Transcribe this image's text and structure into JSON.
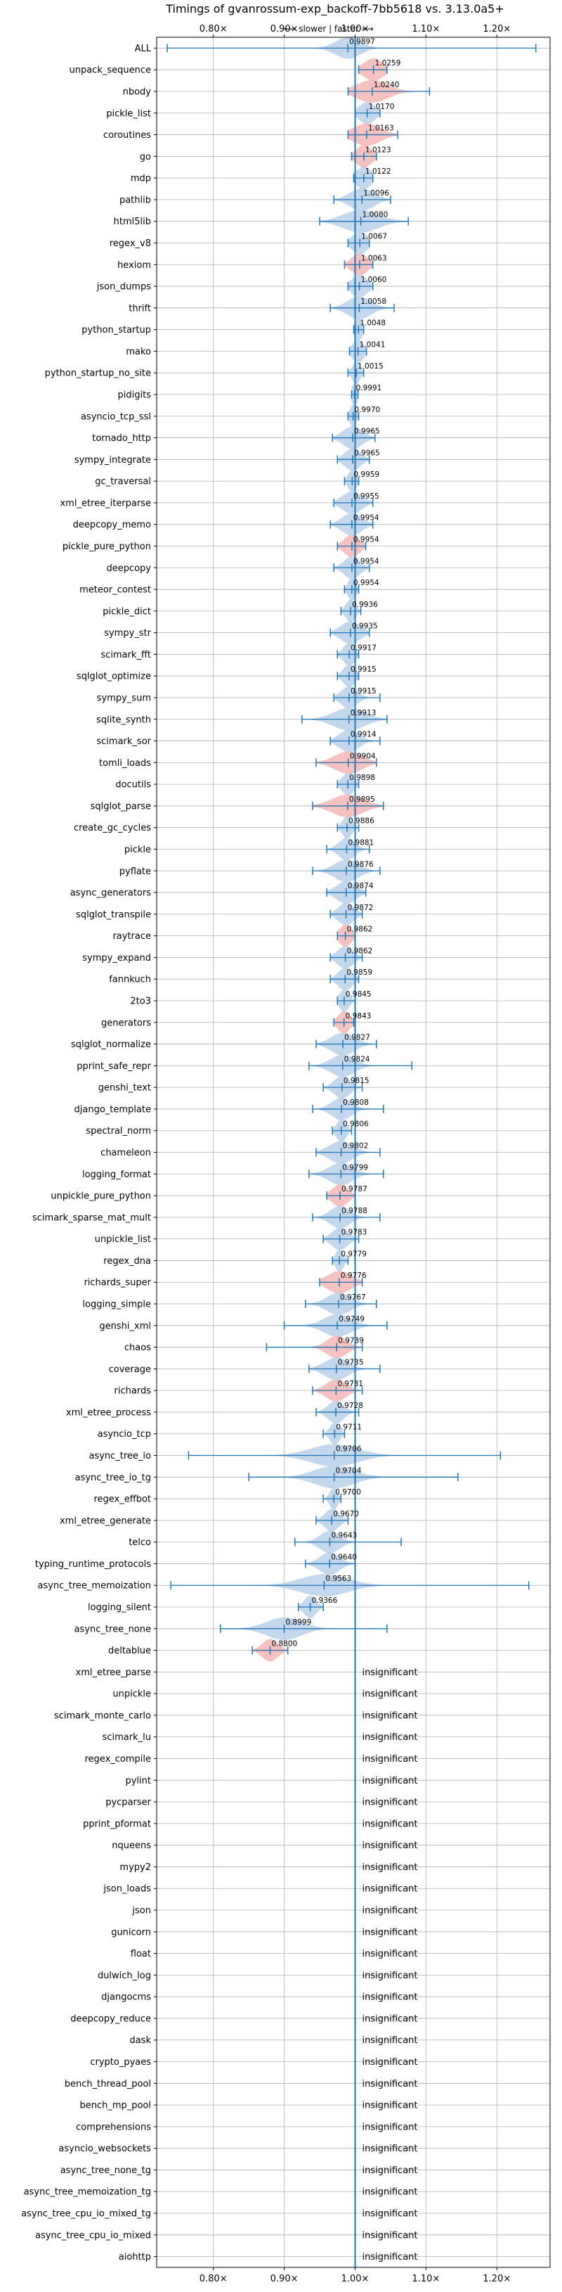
{
  "chart_data": {
    "type": "violin",
    "title": "Timings of gvanrossum-exp_backoff-7bb5618 vs. 3.13.0a5+",
    "direction_label": "⟵ slower | faster ⟶",
    "xlim": [
      0.72,
      1.275
    ],
    "x_ticks": [
      0.8,
      0.9,
      1.0,
      1.1,
      1.2
    ],
    "x_tick_labels": [
      "0.80×",
      "0.90×",
      "1.00×",
      "1.10×",
      "1.20×"
    ],
    "grid": true,
    "colors": {
      "faster": "#b8d0ea",
      "slower": "#f4b6b6",
      "line": "#1f77b4"
    },
    "benchmarks": [
      {
        "name": "ALL",
        "value": 0.9897,
        "label": "0.9897",
        "lo": 0.735,
        "hi": 1.255,
        "width": 0.03,
        "color": "faster"
      },
      {
        "name": "unpack_sequence",
        "value": 1.0259,
        "label": "1.0259",
        "lo": 1.005,
        "hi": 1.045,
        "width": 0.025,
        "color": "slower"
      },
      {
        "name": "nbody",
        "value": 1.024,
        "label": "1.0240",
        "lo": 0.99,
        "hi": 1.105,
        "width": 0.04,
        "color": "slower"
      },
      {
        "name": "pickle_list",
        "value": 1.017,
        "label": "1.0170",
        "lo": 1.0,
        "hi": 1.035,
        "width": 0.02,
        "color": "faster"
      },
      {
        "name": "coroutines",
        "value": 1.0163,
        "label": "1.0163",
        "lo": 0.99,
        "hi": 1.06,
        "width": 0.035,
        "color": "slower"
      },
      {
        "name": "go",
        "value": 1.0123,
        "label": "1.0123",
        "lo": 0.995,
        "hi": 1.03,
        "width": 0.02,
        "color": "slower"
      },
      {
        "name": "mdp",
        "value": 1.0122,
        "label": "1.0122",
        "lo": 0.998,
        "hi": 1.025,
        "width": 0.02,
        "color": "faster"
      },
      {
        "name": "pathlib",
        "value": 1.0096,
        "label": "1.0096",
        "lo": 0.97,
        "hi": 1.05,
        "width": 0.03,
        "color": "faster"
      },
      {
        "name": "html5lib",
        "value": 1.008,
        "label": "1.0080",
        "lo": 0.95,
        "hi": 1.075,
        "width": 0.045,
        "color": "faster"
      },
      {
        "name": "regex_v8",
        "value": 1.0067,
        "label": "1.0067",
        "lo": 0.99,
        "hi": 1.02,
        "width": 0.02,
        "color": "faster"
      },
      {
        "name": "hexiom",
        "value": 1.0063,
        "label": "1.0063",
        "lo": 0.985,
        "hi": 1.025,
        "width": 0.02,
        "color": "slower"
      },
      {
        "name": "json_dumps",
        "value": 1.006,
        "label": "1.0060",
        "lo": 0.99,
        "hi": 1.025,
        "width": 0.02,
        "color": "faster"
      },
      {
        "name": "thrift",
        "value": 1.0058,
        "label": "1.0058",
        "lo": 0.965,
        "hi": 1.055,
        "width": 0.03,
        "color": "faster"
      },
      {
        "name": "python_startup",
        "value": 1.0048,
        "label": "1.0048",
        "lo": 0.998,
        "hi": 1.012,
        "width": 0.01,
        "color": "faster"
      },
      {
        "name": "mako",
        "value": 1.0041,
        "label": "1.0041",
        "lo": 0.992,
        "hi": 1.016,
        "width": 0.015,
        "color": "faster"
      },
      {
        "name": "python_startup_no_site",
        "value": 1.0015,
        "label": "1.0015",
        "lo": 0.99,
        "hi": 1.012,
        "width": 0.01,
        "color": "faster"
      },
      {
        "name": "pidigits",
        "value": 0.9991,
        "label": "0.9991",
        "lo": 0.995,
        "hi": 1.004,
        "width": 0.008,
        "color": "faster"
      },
      {
        "name": "asyncio_tcp_ssl",
        "value": 0.997,
        "label": "0.9970",
        "lo": 0.99,
        "hi": 1.005,
        "width": 0.008,
        "color": "faster"
      },
      {
        "name": "tornado_http",
        "value": 0.9965,
        "label": "0.9965",
        "lo": 0.968,
        "hi": 1.028,
        "width": 0.025,
        "color": "faster"
      },
      {
        "name": "sympy_integrate",
        "value": 0.9965,
        "label": "0.9965",
        "lo": 0.975,
        "hi": 1.02,
        "width": 0.02,
        "color": "faster"
      },
      {
        "name": "gc_traversal",
        "value": 0.9959,
        "label": "0.9959",
        "lo": 0.985,
        "hi": 1.005,
        "width": 0.01,
        "color": "faster"
      },
      {
        "name": "xml_etree_iterparse",
        "value": 0.9955,
        "label": "0.9955",
        "lo": 0.97,
        "hi": 1.025,
        "width": 0.025,
        "color": "faster"
      },
      {
        "name": "deepcopy_memo",
        "value": 0.9954,
        "label": "0.9954",
        "lo": 0.965,
        "hi": 1.025,
        "width": 0.025,
        "color": "faster"
      },
      {
        "name": "pickle_pure_python",
        "value": 0.9954,
        "label": "0.9954",
        "lo": 0.975,
        "hi": 1.015,
        "width": 0.02,
        "color": "slower"
      },
      {
        "name": "deepcopy",
        "value": 0.9954,
        "label": "0.9954",
        "lo": 0.97,
        "hi": 1.02,
        "width": 0.02,
        "color": "faster"
      },
      {
        "name": "meteor_contest",
        "value": 0.9954,
        "label": "0.9954",
        "lo": 0.985,
        "hi": 1.005,
        "width": 0.01,
        "color": "faster"
      },
      {
        "name": "pickle_dict",
        "value": 0.9936,
        "label": "0.9936",
        "lo": 0.98,
        "hi": 1.008,
        "width": 0.012,
        "color": "faster"
      },
      {
        "name": "sympy_str",
        "value": 0.9935,
        "label": "0.9935",
        "lo": 0.965,
        "hi": 1.02,
        "width": 0.025,
        "color": "faster"
      },
      {
        "name": "scimark_fft",
        "value": 0.9917,
        "label": "0.9917",
        "lo": 0.975,
        "hi": 1.005,
        "width": 0.015,
        "color": "faster"
      },
      {
        "name": "sqlglot_optimize",
        "value": 0.9915,
        "label": "0.9915",
        "lo": 0.975,
        "hi": 1.005,
        "width": 0.015,
        "color": "faster"
      },
      {
        "name": "sympy_sum",
        "value": 0.9915,
        "label": "0.9915",
        "lo": 0.97,
        "hi": 1.035,
        "width": 0.02,
        "color": "faster"
      },
      {
        "name": "sqlite_synth",
        "value": 0.9913,
        "label": "0.9913",
        "lo": 0.925,
        "hi": 1.045,
        "width": 0.04,
        "color": "faster"
      },
      {
        "name": "scimark_sor",
        "value": 0.9914,
        "label": "0.9914",
        "lo": 0.965,
        "hi": 1.035,
        "width": 0.025,
        "color": "faster"
      },
      {
        "name": "tomli_loads",
        "value": 0.9904,
        "label": "0.9904",
        "lo": 0.945,
        "hi": 1.03,
        "width": 0.035,
        "color": "slower"
      },
      {
        "name": "docutils",
        "value": 0.9898,
        "label": "0.9898",
        "lo": 0.975,
        "hi": 1.005,
        "width": 0.015,
        "color": "faster"
      },
      {
        "name": "sqlglot_parse",
        "value": 0.9895,
        "label": "0.9895",
        "lo": 0.94,
        "hi": 1.04,
        "width": 0.04,
        "color": "slower"
      },
      {
        "name": "create_gc_cycles",
        "value": 0.9886,
        "label": "0.9886",
        "lo": 0.975,
        "hi": 1.005,
        "width": 0.012,
        "color": "faster"
      },
      {
        "name": "pickle",
        "value": 0.9881,
        "label": "0.9881",
        "lo": 0.96,
        "hi": 1.02,
        "width": 0.02,
        "color": "faster"
      },
      {
        "name": "pyflate",
        "value": 0.9876,
        "label": "0.9876",
        "lo": 0.94,
        "hi": 1.035,
        "width": 0.03,
        "color": "faster"
      },
      {
        "name": "async_generators",
        "value": 0.9874,
        "label": "0.9874",
        "lo": 0.96,
        "hi": 1.015,
        "width": 0.025,
        "color": "faster"
      },
      {
        "name": "sqlglot_transpile",
        "value": 0.9872,
        "label": "0.9872",
        "lo": 0.965,
        "hi": 1.01,
        "width": 0.02,
        "color": "faster"
      },
      {
        "name": "raytrace",
        "value": 0.9862,
        "label": "0.9862",
        "lo": 0.975,
        "hi": 1.0,
        "width": 0.015,
        "color": "slower"
      },
      {
        "name": "sympy_expand",
        "value": 0.9862,
        "label": "0.9862",
        "lo": 0.965,
        "hi": 1.01,
        "width": 0.02,
        "color": "faster"
      },
      {
        "name": "fannkuch",
        "value": 0.9859,
        "label": "0.9859",
        "lo": 0.965,
        "hi": 1.005,
        "width": 0.018,
        "color": "faster"
      },
      {
        "name": "2to3",
        "value": 0.9845,
        "label": "0.9845",
        "lo": 0.975,
        "hi": 1.0,
        "width": 0.012,
        "color": "faster"
      },
      {
        "name": "generators",
        "value": 0.9843,
        "label": "0.9843",
        "lo": 0.97,
        "hi": 0.998,
        "width": 0.015,
        "color": "slower"
      },
      {
        "name": "sqlglot_normalize",
        "value": 0.9827,
        "label": "0.9827",
        "lo": 0.945,
        "hi": 1.03,
        "width": 0.03,
        "color": "faster"
      },
      {
        "name": "pprint_safe_repr",
        "value": 0.9824,
        "label": "0.9824",
        "lo": 0.935,
        "hi": 1.08,
        "width": 0.03,
        "color": "faster"
      },
      {
        "name": "genshi_text",
        "value": 0.9815,
        "label": "0.9815",
        "lo": 0.955,
        "hi": 1.01,
        "width": 0.02,
        "color": "faster"
      },
      {
        "name": "django_template",
        "value": 0.9808,
        "label": "0.9808",
        "lo": 0.94,
        "hi": 1.04,
        "width": 0.025,
        "color": "faster"
      },
      {
        "name": "spectral_norm",
        "value": 0.9806,
        "label": "0.9806",
        "lo": 0.968,
        "hi": 0.995,
        "width": 0.012,
        "color": "faster"
      },
      {
        "name": "chameleon",
        "value": 0.9802,
        "label": "0.9802",
        "lo": 0.945,
        "hi": 1.035,
        "width": 0.03,
        "color": "faster"
      },
      {
        "name": "logging_format",
        "value": 0.9799,
        "label": "0.9799",
        "lo": 0.935,
        "hi": 1.04,
        "width": 0.03,
        "color": "faster"
      },
      {
        "name": "unpickle_pure_python",
        "value": 0.9787,
        "label": "0.9787",
        "lo": 0.96,
        "hi": 1.0,
        "width": 0.02,
        "color": "slower"
      },
      {
        "name": "scimark_sparse_mat_mult",
        "value": 0.9788,
        "label": "0.9788",
        "lo": 0.94,
        "hi": 1.035,
        "width": 0.025,
        "color": "faster"
      },
      {
        "name": "unpickle_list",
        "value": 0.9783,
        "label": "0.9783",
        "lo": 0.955,
        "hi": 1.005,
        "width": 0.02,
        "color": "faster"
      },
      {
        "name": "regex_dna",
        "value": 0.9779,
        "label": "0.9779",
        "lo": 0.968,
        "hi": 0.99,
        "width": 0.01,
        "color": "faster"
      },
      {
        "name": "richards_super",
        "value": 0.9776,
        "label": "0.9776",
        "lo": 0.95,
        "hi": 1.01,
        "width": 0.03,
        "color": "slower"
      },
      {
        "name": "logging_simple",
        "value": 0.9767,
        "label": "0.9767",
        "lo": 0.93,
        "hi": 1.03,
        "width": 0.03,
        "color": "faster"
      },
      {
        "name": "genshi_xml",
        "value": 0.9749,
        "label": "0.9749",
        "lo": 0.9,
        "hi": 1.045,
        "width": 0.035,
        "color": "faster"
      },
      {
        "name": "chaos",
        "value": 0.9739,
        "label": "0.9739",
        "lo": 0.875,
        "hi": 1.01,
        "width": 0.025,
        "color": "slower"
      },
      {
        "name": "coverage",
        "value": 0.9735,
        "label": "0.9735",
        "lo": 0.935,
        "hi": 1.035,
        "width": 0.03,
        "color": "faster"
      },
      {
        "name": "richards",
        "value": 0.9731,
        "label": "0.9731",
        "lo": 0.94,
        "hi": 1.01,
        "width": 0.025,
        "color": "slower"
      },
      {
        "name": "xml_etree_process",
        "value": 0.9728,
        "label": "0.9728",
        "lo": 0.945,
        "hi": 1.005,
        "width": 0.02,
        "color": "faster"
      },
      {
        "name": "asyncio_tcp",
        "value": 0.9711,
        "label": "0.9711",
        "lo": 0.955,
        "hi": 0.985,
        "width": 0.012,
        "color": "faster"
      },
      {
        "name": "async_tree_io",
        "value": 0.9706,
        "label": "0.9706",
        "lo": 0.765,
        "hi": 1.205,
        "width": 0.06,
        "color": "faster"
      },
      {
        "name": "async_tree_io_tg",
        "value": 0.9704,
        "label": "0.9704",
        "lo": 0.85,
        "hi": 1.145,
        "width": 0.05,
        "color": "faster"
      },
      {
        "name": "regex_effbot",
        "value": 0.97,
        "label": "0.9700",
        "lo": 0.955,
        "hi": 0.98,
        "width": 0.01,
        "color": "faster"
      },
      {
        "name": "xml_etree_generate",
        "value": 0.967,
        "label": "0.9670",
        "lo": 0.945,
        "hi": 0.99,
        "width": 0.018,
        "color": "faster"
      },
      {
        "name": "telco",
        "value": 0.9643,
        "label": "0.9643",
        "lo": 0.915,
        "hi": 1.065,
        "width": 0.025,
        "color": "faster"
      },
      {
        "name": "typing_runtime_protocols",
        "value": 0.964,
        "label": "0.9640",
        "lo": 0.93,
        "hi": 1.0,
        "width": 0.025,
        "color": "faster"
      },
      {
        "name": "async_tree_memoization",
        "value": 0.9563,
        "label": "0.9563",
        "lo": 0.74,
        "hi": 1.245,
        "width": 0.06,
        "color": "faster"
      },
      {
        "name": "logging_silent",
        "value": 0.9366,
        "label": "0.9366",
        "lo": 0.92,
        "hi": 0.955,
        "width": 0.015,
        "color": "faster"
      },
      {
        "name": "async_tree_none",
        "value": 0.8999,
        "label": "0.8999",
        "lo": 0.81,
        "hi": 1.045,
        "width": 0.045,
        "color": "faster"
      },
      {
        "name": "deltablue",
        "value": 0.88,
        "label": "0.8800",
        "lo": 0.855,
        "hi": 0.905,
        "width": 0.02,
        "color": "slower"
      },
      {
        "name": "xml_etree_parse",
        "value": null,
        "label": "insignificant"
      },
      {
        "name": "unpickle",
        "value": null,
        "label": "insignificant"
      },
      {
        "name": "scimark_monte_carlo",
        "value": null,
        "label": "insignificant"
      },
      {
        "name": "scimark_lu",
        "value": null,
        "label": "insignificant"
      },
      {
        "name": "regex_compile",
        "value": null,
        "label": "insignificant"
      },
      {
        "name": "pylint",
        "value": null,
        "label": "insignificant"
      },
      {
        "name": "pycparser",
        "value": null,
        "label": "insignificant"
      },
      {
        "name": "pprint_pformat",
        "value": null,
        "label": "insignificant"
      },
      {
        "name": "nqueens",
        "value": null,
        "label": "insignificant"
      },
      {
        "name": "mypy2",
        "value": null,
        "label": "insignificant"
      },
      {
        "name": "json_loads",
        "value": null,
        "label": "insignificant"
      },
      {
        "name": "json",
        "value": null,
        "label": "insignificant"
      },
      {
        "name": "gunicorn",
        "value": null,
        "label": "insignificant"
      },
      {
        "name": "float",
        "value": null,
        "label": "insignificant"
      },
      {
        "name": "dulwich_log",
        "value": null,
        "label": "insignificant"
      },
      {
        "name": "djangocms",
        "value": null,
        "label": "insignificant"
      },
      {
        "name": "deepcopy_reduce",
        "value": null,
        "label": "insignificant"
      },
      {
        "name": "dask",
        "value": null,
        "label": "insignificant"
      },
      {
        "name": "crypto_pyaes",
        "value": null,
        "label": "insignificant"
      },
      {
        "name": "bench_thread_pool",
        "value": null,
        "label": "insignificant"
      },
      {
        "name": "bench_mp_pool",
        "value": null,
        "label": "insignificant"
      },
      {
        "name": "comprehensions",
        "value": null,
        "label": "insignificant"
      },
      {
        "name": "asyncio_websockets",
        "value": null,
        "label": "insignificant"
      },
      {
        "name": "async_tree_none_tg",
        "value": null,
        "label": "insignificant"
      },
      {
        "name": "async_tree_memoization_tg",
        "value": null,
        "label": "insignificant"
      },
      {
        "name": "async_tree_cpu_io_mixed_tg",
        "value": null,
        "label": "insignificant"
      },
      {
        "name": "async_tree_cpu_io_mixed",
        "value": null,
        "label": "insignificant"
      },
      {
        "name": "aiohttp",
        "value": null,
        "label": "insignificant"
      }
    ]
  }
}
